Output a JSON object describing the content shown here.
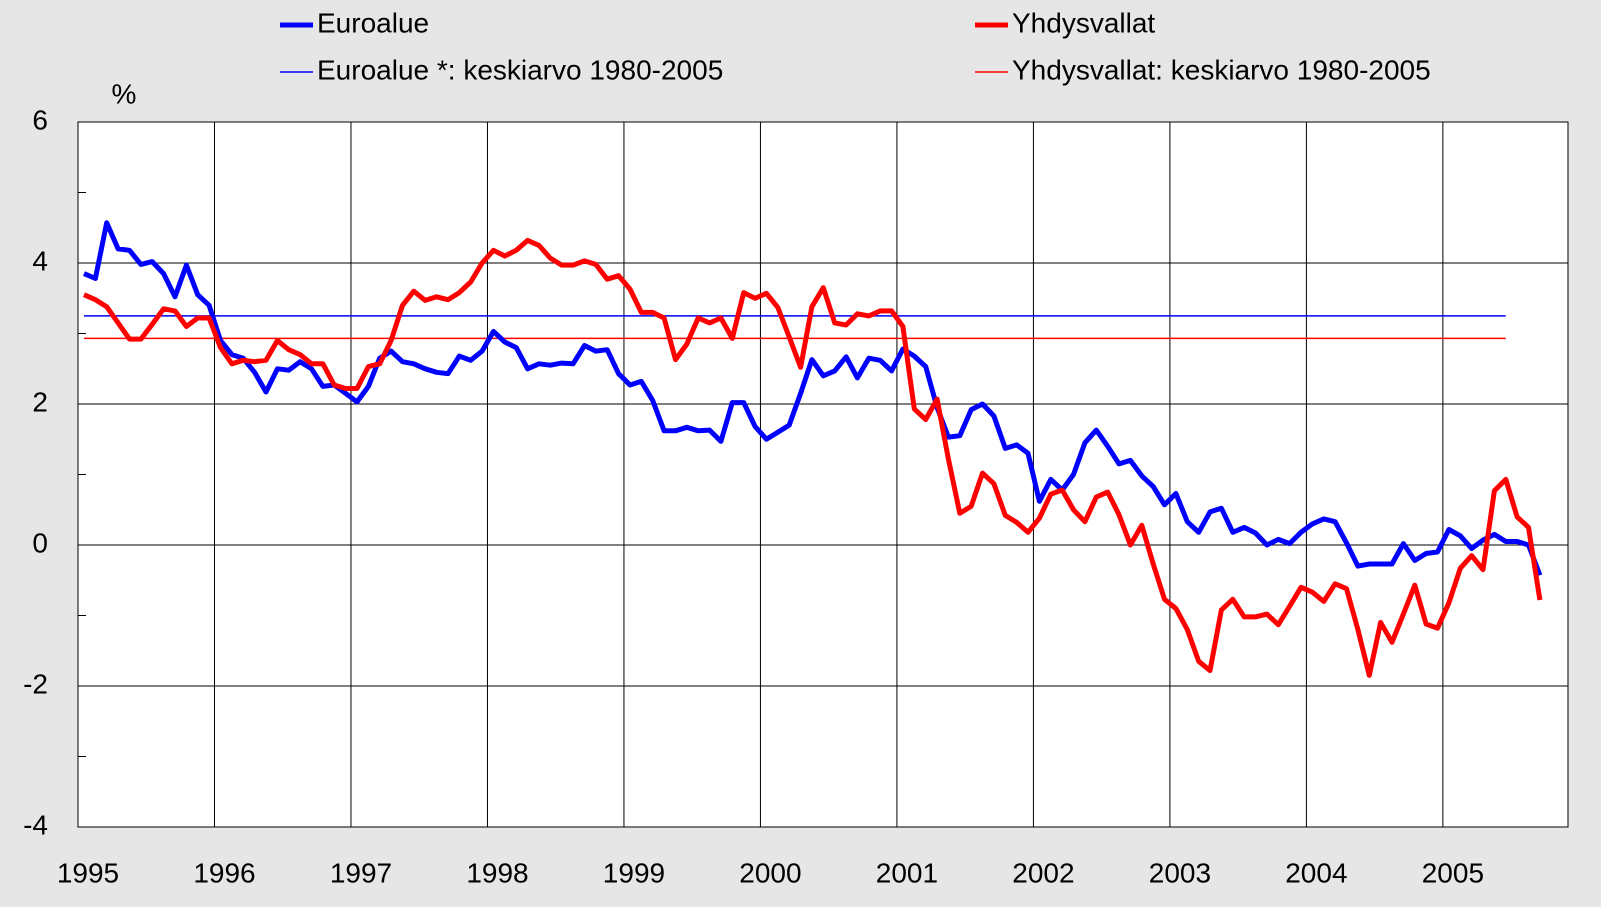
{
  "chart_data": {
    "type": "line",
    "y_label": "%",
    "categories": [
      "1995",
      null,
      null,
      null,
      null,
      null,
      null,
      null,
      null,
      null,
      null,
      null,
      "1996",
      null,
      null,
      null,
      null,
      null,
      null,
      null,
      null,
      null,
      null,
      null,
      "1997",
      null,
      null,
      null,
      null,
      null,
      null,
      null,
      null,
      null,
      null,
      null,
      "1998",
      null,
      null,
      null,
      null,
      null,
      null,
      null,
      null,
      null,
      null,
      null,
      "1999",
      null,
      null,
      null,
      null,
      null,
      null,
      null,
      null,
      null,
      null,
      null,
      "2000",
      null,
      null,
      null,
      null,
      null,
      null,
      null,
      null,
      null,
      null,
      null,
      "2001",
      null,
      null,
      null,
      null,
      null,
      null,
      null,
      null,
      null,
      null,
      null,
      "2002",
      null,
      null,
      null,
      null,
      null,
      null,
      null,
      null,
      null,
      null,
      null,
      "2003",
      null,
      null,
      null,
      null,
      null,
      null,
      null,
      null,
      null,
      null,
      null,
      "2004",
      null,
      null,
      null,
      null,
      null,
      null,
      null,
      null,
      null,
      null,
      null,
      "2005",
      null,
      null,
      null,
      null,
      null,
      null,
      null,
      null
    ],
    "series": [
      {
        "name": "Euroalue",
        "color": "#0000ff",
        "values": [
          3.85,
          3.78,
          4.57,
          4.2,
          4.18,
          3.98,
          4.02,
          3.85,
          3.52,
          3.97,
          3.55,
          3.4,
          2.9,
          2.7,
          2.65,
          2.45,
          2.17,
          2.5,
          2.48,
          2.6,
          2.5,
          2.25,
          2.27,
          2.15,
          2.03,
          2.25,
          2.65,
          2.75,
          2.6,
          2.57,
          2.5,
          2.45,
          2.43,
          2.68,
          2.62,
          2.75,
          3.03,
          2.88,
          2.8,
          2.5,
          2.57,
          2.55,
          2.58,
          2.57,
          2.83,
          2.75,
          2.77,
          2.43,
          2.27,
          2.32,
          2.05,
          1.62,
          1.62,
          1.67,
          1.62,
          1.63,
          1.47,
          2.02,
          2.02,
          1.68,
          1.5,
          1.6,
          1.7,
          2.15,
          2.63,
          2.4,
          2.47,
          2.67,
          2.37,
          2.65,
          2.62,
          2.47,
          2.78,
          2.68,
          2.53,
          1.95,
          1.53,
          1.55,
          1.92,
          2.0,
          1.83,
          1.37,
          1.42,
          1.3,
          0.62,
          0.93,
          0.78,
          1.0,
          1.45,
          1.63,
          1.4,
          1.15,
          1.2,
          0.98,
          0.83,
          0.57,
          0.73,
          0.33,
          0.18,
          0.47,
          0.52,
          0.18,
          0.25,
          0.17,
          0.0,
          0.08,
          0.02,
          0.18,
          0.3,
          0.37,
          0.33,
          0.03,
          -0.3,
          -0.27,
          -0.27,
          -0.27,
          0.02,
          -0.22,
          -0.12,
          -0.1,
          0.22,
          0.13,
          -0.05,
          0.07,
          0.15,
          0.05,
          0.05,
          0.0,
          -0.43
        ]
      },
      {
        "name": "Yhdysvallat",
        "color": "#ff0000",
        "values": [
          3.55,
          3.48,
          3.38,
          3.15,
          2.92,
          2.92,
          3.13,
          3.35,
          3.32,
          3.1,
          3.22,
          3.22,
          2.8,
          2.57,
          2.62,
          2.6,
          2.62,
          2.9,
          2.77,
          2.7,
          2.57,
          2.57,
          2.27,
          2.22,
          2.22,
          2.53,
          2.57,
          2.9,
          3.4,
          3.6,
          3.47,
          3.52,
          3.48,
          3.58,
          3.73,
          4.0,
          4.18,
          4.1,
          4.18,
          4.32,
          4.25,
          4.07,
          3.97,
          3.97,
          4.03,
          3.98,
          3.77,
          3.82,
          3.63,
          3.3,
          3.3,
          3.22,
          2.63,
          2.85,
          3.22,
          3.15,
          3.22,
          2.93,
          3.58,
          3.5,
          3.57,
          3.37,
          2.95,
          2.52,
          3.38,
          3.65,
          3.15,
          3.12,
          3.28,
          3.25,
          3.32,
          3.32,
          3.1,
          1.93,
          1.78,
          2.07,
          1.22,
          0.45,
          0.55,
          1.02,
          0.87,
          0.42,
          0.32,
          0.18,
          0.38,
          0.72,
          0.78,
          0.5,
          0.33,
          0.68,
          0.75,
          0.43,
          0.0,
          0.28,
          -0.27,
          -0.77,
          -0.9,
          -1.2,
          -1.65,
          -1.78,
          -0.92,
          -0.77,
          -1.02,
          -1.02,
          -0.98,
          -1.13,
          -0.87,
          -0.6,
          -0.67,
          -0.8,
          -0.55,
          -0.62,
          -1.2,
          -1.85,
          -1.1,
          -1.38,
          -0.98,
          -0.57,
          -1.12,
          -1.18,
          -0.82,
          -0.33,
          -0.15,
          -0.35,
          0.77,
          0.93,
          0.4,
          0.25,
          -0.78
        ]
      }
    ],
    "averages": [
      {
        "name": "Euroalue *: keskiarvo 1980-2005",
        "color": "#0000ff",
        "value": 3.25
      },
      {
        "name": "Yhdysvallat: keskiarvo 1980-2005",
        "color": "#ff0000",
        "value": 2.93
      }
    ],
    "ylim": [
      -4,
      6
    ],
    "yticks": [
      -4,
      -2,
      0,
      2,
      4,
      6
    ],
    "yticks_minor": [
      -3,
      -1,
      1,
      3,
      5
    ],
    "grid": true
  }
}
